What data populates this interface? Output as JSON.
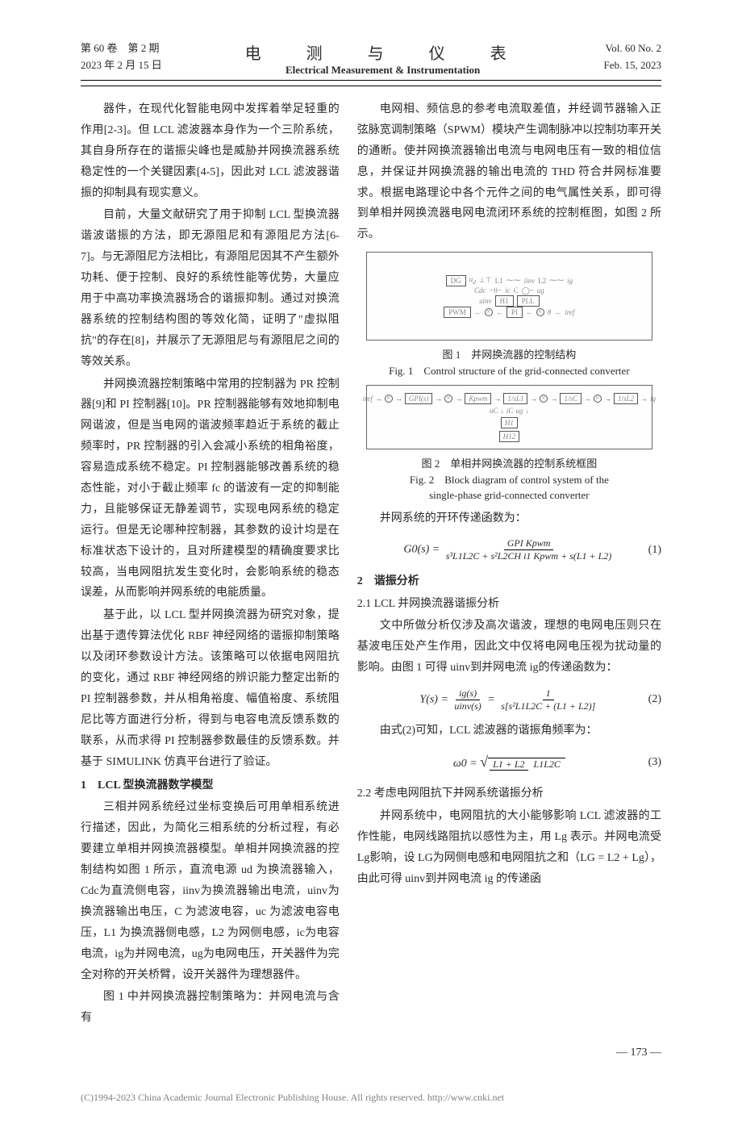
{
  "header": {
    "volume_issue_cn": "第 60 卷　第 2 期",
    "date_cn": "2023 年 2 月 15 日",
    "journal_cn": "电　测　与　仪　表",
    "journal_en": "Electrical Measurement & Instrumentation",
    "volume_issue_en": "Vol. 60 No. 2",
    "date_en": "Feb. 15, 2023"
  },
  "left_column": {
    "p1": "器件，在现代化智能电网中发挥着举足轻重的作用[2-3]。但 LCL 滤波器本身作为一个三阶系统，其自身所存在的谐振尖峰也是威胁并网换流器系统稳定性的一个关键因素[4-5]，因此对 LCL 滤波器谐振的抑制具有现实意义。",
    "p2": "目前，大量文献研究了用于抑制 LCL 型换流器谐波谐振的方法，即无源阻尼和有源阻尼方法[6-7]。与无源阻尼方法相比，有源阻尼因其不产生额外功耗、便于控制、良好的系统性能等优势，大量应用于中高功率换流器场合的谐振抑制。通过对换流器系统的控制结构图的等效化简，证明了\"虚拟阻抗\"的存在[8]，并展示了无源阻尼与有源阻尼之间的等效关系。",
    "p3": "并网换流器控制策略中常用的控制器为 PR 控制器[9]和 PI 控制器[10]。PR 控制器能够有效地抑制电网谐波，但是当电网的谐波频率趋近于系统的截止频率时，PR 控制器的引入会减小系统的相角裕度，容易造成系统不稳定。PI 控制器能够改善系统的稳态性能，对小于截止频率 fc 的谐波有一定的抑制能力，且能够保证无静差调节，实现电网系统的稳定运行。但是无论哪种控制器，其参数的设计均是在标准状态下设计的，且对所建模型的精确度要求比较高，当电网阻抗发生变化时，会影响系统的稳态误差，从而影响并网系统的电能质量。",
    "p4": "基于此，以 LCL 型并网换流器为研究对象，提出基于遗传算法优化 RBF 神经网络的谐振抑制策略以及闭环参数设计方法。该策略可以依据电网阻抗的变化，通过 RBF 神经网络的辨识能力整定出新的 PI 控制器参数，并从相角裕度、幅值裕度、系统阻尼比等方面进行分析，得到与电容电流反馈系数的联系，从而求得 PI 控制器参数最佳的反馈系数。并基于 SIMULINK 仿真平台进行了验证。",
    "s1_title": "1　LCL 型换流器数学模型",
    "p5": "三相并网系统经过坐标变换后可用单相系统进行描述，因此，为简化三相系统的分析过程，有必要建立单相并网换流器模型。单相并网换流器的控制结构如图 1 所示，直流电源 ud 为换流器输入，Cdc为直流侧电容，iinv为换流器输出电流，uinv为换流器输出电压，C 为滤波电容，uc 为滤波电容电压，L1 为换流器侧电感，L2 为网侧电感，ic为电容电流，ig为并网电流，ug为电网电压，开关器件为完全对称的开关桥臂，设开关器件为理想器件。",
    "p6": "图 1 中并网换流器控制策略为：并网电流与含有"
  },
  "right_column": {
    "p1": "电网相、频信息的参考电流取差值，并经调节器输入正弦脉宽调制策略（SPWM）模块产生调制脉冲以控制功率开关的通断。使并网换流器输出电流与电网电压有一致的相位信息，并保证并网换流器的输出电流的 THD 符合并网标准要求。根据电路理论中各个元件之间的电气属性关系，即可得到单相并网换流器电网电流闭环系统的控制框图，如图 2 所示。",
    "fig1": {
      "blocks": [
        "DG",
        "Cdc",
        "L1",
        "iinv",
        "L2",
        "ic",
        "C",
        "uinv",
        "H1",
        "PWM",
        "PI",
        "PLL",
        "θ",
        "ig",
        "ug",
        "iref"
      ],
      "caption_cn": "图 1　并网换流器的控制结构",
      "caption_en": "Fig. 1　Control structure of the grid-connected converter"
    },
    "fig2": {
      "blocks": [
        "iref",
        "GPI(s)",
        "Kpwm",
        "1/sL1",
        "1/sC",
        "1/sL2",
        "H1",
        "H12",
        "uC",
        "ug",
        "iC",
        "ig"
      ],
      "caption_cn": "图 2　单相并网换流器的控制系统框图",
      "caption_en_l1": "Fig. 2　Block diagram of control system of the",
      "caption_en_l2": "single-phase grid-connected converter"
    },
    "p2": "并网系统的开环传递函数为：",
    "eq1": {
      "lhs": "G0(s) = ",
      "num": "GPI Kpwm",
      "den": "s³L1L2C + s²L2CH i1 Kpwm + s(L1 + L2)",
      "num_label": "(1)"
    },
    "s2_title": "2　谐振分析",
    "s21_title": "2.1 LCL 并网换流器谐振分析",
    "p3": "文中所做分析仅涉及高次谐波，理想的电网电压则只在基波电压处产生作用，因此文中仅将电网电压视为扰动量的影响。由图 1 可得 uinv到并网电流 ig的传递函数为：",
    "eq2": {
      "lhs": "Y(s) = ",
      "mid_num": "ig(s)",
      "mid_den": "uinv(s)",
      "eq": " = ",
      "num": "1",
      "den": "s[s²L1L2C + (L1 + L2)]",
      "num_label": "(2)"
    },
    "p4": "由式(2)可知，LCL 滤波器的谐振角频率为：",
    "eq3": {
      "lhs": "ω0 = ",
      "sqrt_num": "L1 + L2",
      "sqrt_den": "L1L2C",
      "num_label": "(3)"
    },
    "s22_title": "2.2 考虑电网阻抗下并网系统谐振分析",
    "p5": "并网系统中，电网阻抗的大小能够影响 LCL 滤波器的工作性能，电网线路阻抗以感性为主，用 Lg 表示。并网电流受 Lg影响，设 LG为网侧电感和电网阻抗之和（LG = L2 + Lg），由此可得 uinv到并网电流 ig 的传递函"
  },
  "page_number": "— 173 —",
  "footer": "(C)1994-2023 China Academic Journal Electronic Publishing House. All rights reserved.    http://www.cnki.net"
}
